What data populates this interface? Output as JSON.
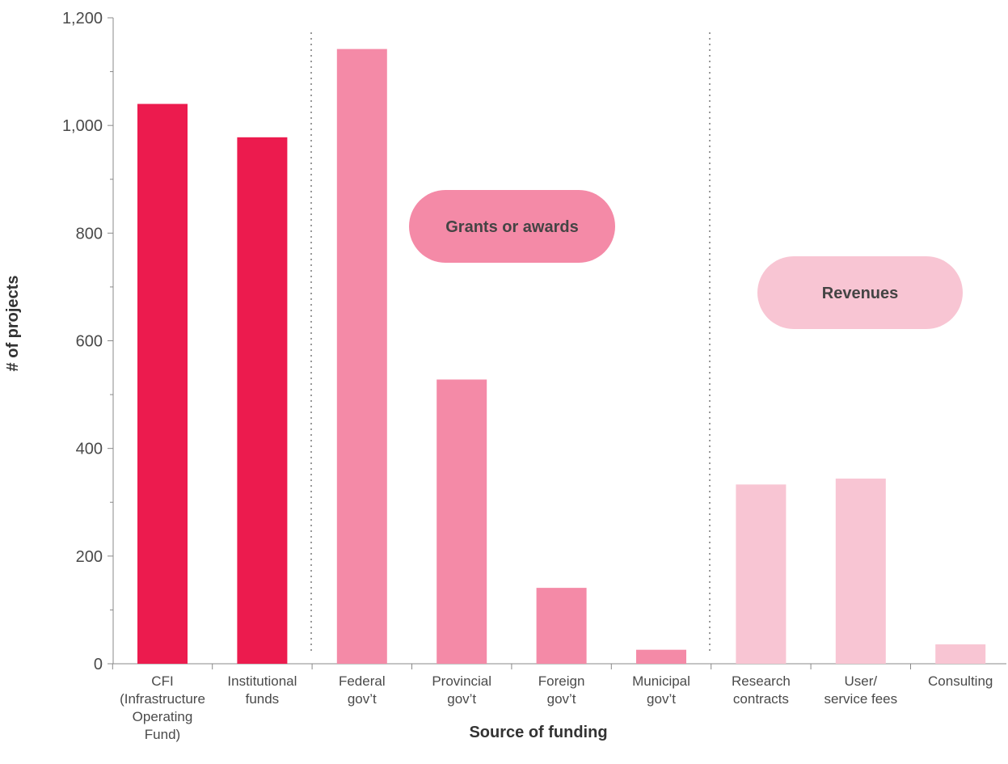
{
  "chart_data": {
    "type": "bar",
    "title": "",
    "xlabel": "Source of funding",
    "ylabel": "# of projects",
    "ylim": [
      0,
      1200
    ],
    "yticks": [
      "0",
      "200",
      "400",
      "600",
      "800",
      "1,000",
      "1,200"
    ],
    "categories": [
      [
        "CFI",
        "(Infrastructure",
        "Operating",
        "Fund)"
      ],
      [
        "Institutional",
        "funds"
      ],
      [
        "Federal",
        "gov’t"
      ],
      [
        "Provincial",
        "gov’t"
      ],
      [
        "Foreign",
        "gov’t"
      ],
      [
        "Municipal",
        "gov’t"
      ],
      [
        "Research",
        "contracts"
      ],
      [
        "User/",
        "service fees"
      ],
      [
        "Consulting"
      ]
    ],
    "values": [
      1040,
      978,
      1142,
      528,
      141,
      26,
      333,
      344,
      36
    ],
    "bar_colors": [
      "#ec1b4e",
      "#ec1b4e",
      "#f48aa7",
      "#f48aa7",
      "#f48aa7",
      "#f48aa7",
      "#f8c5d3",
      "#f8c5d3",
      "#f8c5d3"
    ],
    "groups": [
      {
        "label": "Grants or awards",
        "color": "#f48aa7"
      },
      {
        "label": "Revenues",
        "color": "#f8c5d3"
      }
    ],
    "grid": false
  }
}
